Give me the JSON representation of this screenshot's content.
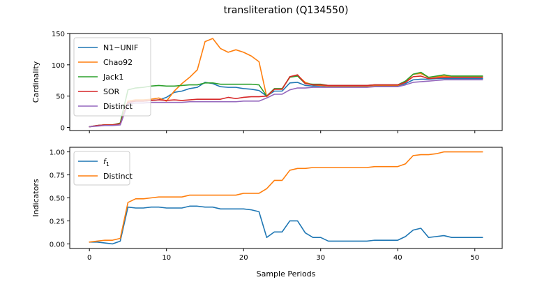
{
  "chart_data": {
    "title": "transliteration (Q134550)",
    "xlabel": "Sample Periods",
    "x": [
      0,
      1,
      2,
      3,
      4,
      5,
      6,
      7,
      8,
      9,
      10,
      11,
      12,
      13,
      14,
      15,
      16,
      17,
      18,
      19,
      20,
      21,
      22,
      23,
      24,
      25,
      26,
      27,
      28,
      29,
      30,
      31,
      32,
      33,
      34,
      35,
      36,
      37,
      38,
      39,
      40,
      41,
      42,
      43,
      44,
      45,
      46,
      47,
      48,
      49,
      50,
      51
    ],
    "xticks": [
      0,
      10,
      20,
      30,
      40,
      50
    ],
    "xlim": [
      -2.55,
      53.55
    ],
    "subplots": [
      {
        "type": "line",
        "ylabel": "Cardinality",
        "ylim": [
          -5,
          150
        ],
        "yticks": [
          0,
          50,
          100,
          150
        ],
        "legend": "upper-left",
        "series": [
          {
            "name": "N1−UNIF",
            "color": "#1f77b4",
            "values": [
              1,
              3,
              4,
              4,
              6,
              40,
              42,
              42,
              43,
              44,
              48,
              56,
              58,
              62,
              64,
              72,
              70,
              65,
              64,
              64,
              62,
              61,
              59,
              50,
              58,
              58,
              71,
              72,
              67,
              66,
              66,
              65,
              65,
              65,
              65,
              65,
              65,
              66,
              66,
              66,
              66,
              70,
              76,
              77,
              77,
              78,
              78,
              78,
              78,
              78,
              78,
              78
            ]
          },
          {
            "name": "Chao92",
            "color": "#ff7f0e",
            "values": [
              1,
              3,
              4,
              4,
              6,
              42,
              44,
              44,
              45,
              47,
              42,
              58,
              70,
              80,
              92,
              137,
              142,
              126,
              120,
              124,
              120,
              114,
              105,
              49,
              61,
              61,
              81,
              83,
              72,
              68,
              67,
              66,
              66,
              66,
              66,
              66,
              66,
              67,
              67,
              67,
              67,
              72,
              85,
              86,
              80,
              81,
              82,
              81,
              81,
              81,
              81,
              81
            ]
          },
          {
            "name": "Jack1",
            "color": "#2ca02c",
            "values": [
              1,
              3,
              4,
              4,
              7,
              60,
              63,
              64,
              66,
              67,
              66,
              66,
              67,
              68,
              68,
              71,
              71,
              69,
              69,
              69,
              69,
              69,
              68,
              50,
              62,
              62,
              80,
              82,
              70,
              69,
              69,
              67,
              67,
              67,
              67,
              67,
              67,
              68,
              68,
              68,
              68,
              74,
              85,
              88,
              80,
              82,
              84,
              82,
              82,
              82,
              82,
              82
            ]
          },
          {
            "name": "SOR",
            "color": "#d62728",
            "values": [
              1,
              3,
              4,
              4,
              6,
              40,
              42,
              42,
              43,
              44,
              43,
              44,
              43,
              44,
              45,
              45,
              45,
              45,
              48,
              46,
              48,
              49,
              49,
              50,
              61,
              61,
              81,
              84,
              70,
              68,
              68,
              67,
              67,
              67,
              67,
              67,
              67,
              68,
              68,
              68,
              68,
              72,
              81,
              82,
              78,
              79,
              80,
              80,
              80,
              80,
              80,
              80
            ]
          },
          {
            "name": "Distinct",
            "color": "#9467bd",
            "values": [
              1,
              2,
              3,
              3,
              4,
              38,
              39,
              39,
              40,
              40,
              40,
              40,
              40,
              41,
              41,
              41,
              41,
              41,
              41,
              41,
              42,
              42,
              42,
              47,
              53,
              53,
              60,
              63,
              63,
              64,
              64,
              64,
              64,
              64,
              64,
              64,
              64,
              65,
              65,
              65,
              65,
              68,
              72,
              73,
              74,
              75,
              76,
              76,
              76,
              76,
              76,
              76
            ]
          }
        ]
      },
      {
        "type": "line",
        "ylabel": "Indicators",
        "ylim": [
          -0.05,
          1.05
        ],
        "yticks": [
          0.0,
          0.25,
          0.5,
          0.75,
          1.0
        ],
        "ytick_labels": [
          "0.00",
          "0.25",
          "0.50",
          "0.75",
          "1.00"
        ],
        "legend": "upper-left",
        "series": [
          {
            "name": "f",
            "name_sub": "1",
            "color": "#1f77b4",
            "values": [
              0.02,
              0.02,
              0.01,
              0.0,
              0.03,
              0.4,
              0.39,
              0.39,
              0.4,
              0.4,
              0.39,
              0.39,
              0.39,
              0.41,
              0.41,
              0.4,
              0.4,
              0.38,
              0.38,
              0.38,
              0.38,
              0.37,
              0.35,
              0.07,
              0.13,
              0.13,
              0.25,
              0.25,
              0.12,
              0.07,
              0.07,
              0.03,
              0.03,
              0.03,
              0.03,
              0.03,
              0.03,
              0.04,
              0.04,
              0.04,
              0.04,
              0.08,
              0.15,
              0.17,
              0.07,
              0.08,
              0.09,
              0.07,
              0.07,
              0.07,
              0.07,
              0.07
            ]
          },
          {
            "name": "Distinct",
            "color": "#ff7f0e",
            "values": [
              0.02,
              0.03,
              0.04,
              0.04,
              0.06,
              0.45,
              0.49,
              0.49,
              0.5,
              0.51,
              0.51,
              0.51,
              0.51,
              0.53,
              0.53,
              0.53,
              0.53,
              0.53,
              0.53,
              0.53,
              0.55,
              0.55,
              0.55,
              0.6,
              0.69,
              0.69,
              0.8,
              0.82,
              0.82,
              0.83,
              0.83,
              0.83,
              0.83,
              0.83,
              0.83,
              0.83,
              0.83,
              0.84,
              0.84,
              0.84,
              0.84,
              0.87,
              0.96,
              0.97,
              0.97,
              0.98,
              1.0,
              1.0,
              1.0,
              1.0,
              1.0,
              1.0
            ]
          }
        ]
      }
    ]
  }
}
